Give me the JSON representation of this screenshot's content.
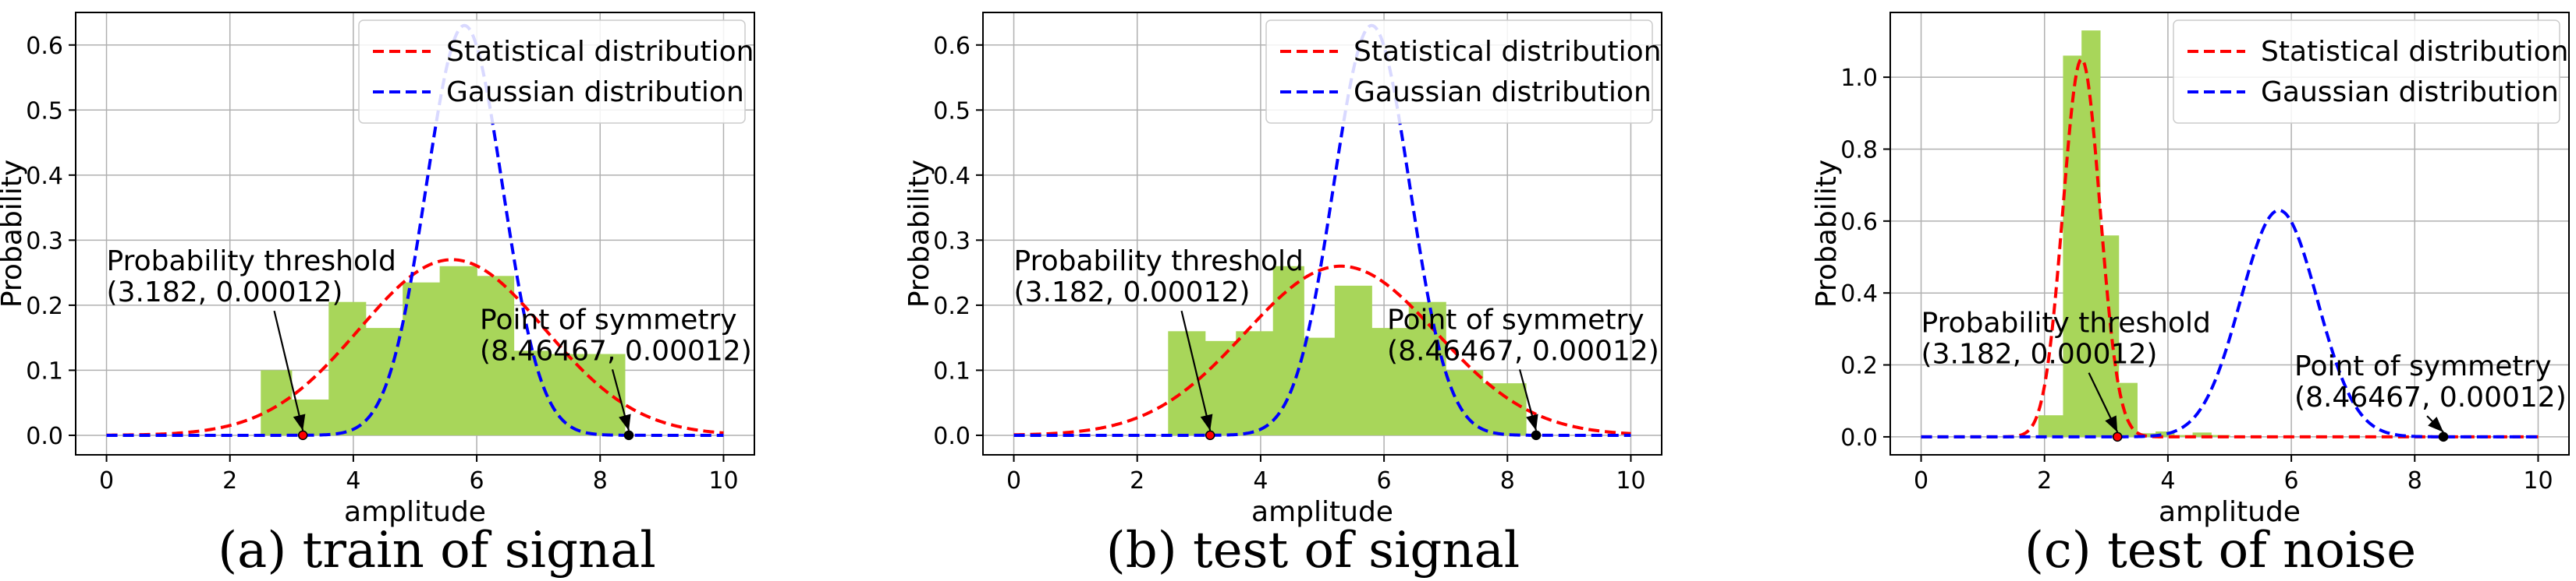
{
  "chart_data": [
    {
      "type": "bar",
      "caption": "(a)  train of signal",
      "xlabel": "amplitude",
      "ylabel": "Probability",
      "xlim": [
        -0.5,
        10.5
      ],
      "ylim": [
        -0.03,
        0.65
      ],
      "xticks": [
        "0",
        "2",
        "4",
        "6",
        "8",
        "10"
      ],
      "yticks": [
        "0.0",
        "0.1",
        "0.2",
        "0.3",
        "0.4",
        "0.5",
        "0.6"
      ],
      "grid": true,
      "legend_position": "top-right",
      "histogram": {
        "color": "#a8d65a",
        "bin_edges": [
          2.5,
          3.0,
          3.6,
          4.2,
          4.8,
          5.4,
          6.0,
          6.6,
          7.2,
          7.8,
          8.4
        ],
        "values": [
          0.1,
          0.055,
          0.205,
          0.165,
          0.235,
          0.26,
          0.245,
          0.13,
          0.125,
          0.125
        ]
      },
      "series": [
        {
          "name": "Statistical distribution",
          "color": "#ff0000",
          "style": "dashed",
          "mean": 5.6,
          "std": 1.5,
          "peak": 0.27
        },
        {
          "name": "Gaussian distribution",
          "color": "#0000ff",
          "style": "dashed",
          "mean": 5.8,
          "std": 0.62,
          "peak": 0.63
        }
      ],
      "annotations": [
        {
          "line1": "Probability threshold",
          "line2": "(3.182, 0.00012)",
          "x": 3.182,
          "y": 0.00012,
          "text_x": 0.0,
          "text_y": 0.22
        },
        {
          "line1": "Point of symmetry",
          "line2": "(8.46467, 0.00012)",
          "x": 8.46467,
          "y": 0.00012,
          "text_x": 6.05,
          "text_y": 0.13
        }
      ]
    },
    {
      "type": "bar",
      "caption": "(b)  test of signal",
      "xlabel": "amplitude",
      "ylabel": "Probability",
      "xlim": [
        -0.5,
        10.5
      ],
      "ylim": [
        -0.03,
        0.65
      ],
      "xticks": [
        "0",
        "2",
        "4",
        "6",
        "8",
        "10"
      ],
      "yticks": [
        "0.0",
        "0.1",
        "0.2",
        "0.3",
        "0.4",
        "0.5",
        "0.6"
      ],
      "grid": true,
      "legend_position": "top-right",
      "histogram": {
        "color": "#a8d65a",
        "bin_edges": [
          2.5,
          3.1,
          3.6,
          4.2,
          4.7,
          5.2,
          5.8,
          6.4,
          7.0,
          7.6,
          8.3
        ],
        "values": [
          0.16,
          0.145,
          0.16,
          0.26,
          0.15,
          0.23,
          0.165,
          0.205,
          0.1,
          0.08
        ]
      },
      "series": [
        {
          "name": "Statistical distribution",
          "color": "#ff0000",
          "style": "dashed",
          "mean": 5.3,
          "std": 1.55,
          "peak": 0.26
        },
        {
          "name": "Gaussian distribution",
          "color": "#0000ff",
          "style": "dashed",
          "mean": 5.8,
          "std": 0.62,
          "peak": 0.63
        }
      ],
      "annotations": [
        {
          "line1": "Probability threshold",
          "line2": "(3.182, 0.00012)",
          "x": 3.182,
          "y": 0.00012,
          "text_x": 0.0,
          "text_y": 0.22
        },
        {
          "line1": "Point of symmetry",
          "line2": "(8.46467, 0.00012)",
          "x": 8.46467,
          "y": 0.00012,
          "text_x": 6.05,
          "text_y": 0.13
        }
      ]
    },
    {
      "type": "bar",
      "caption": "(c)  test of noise",
      "xlabel": "amplitude",
      "ylabel": "Probability",
      "xlim": [
        -0.5,
        10.5
      ],
      "ylim": [
        -0.05,
        1.18
      ],
      "xticks": [
        "0",
        "2",
        "4",
        "6",
        "8",
        "10"
      ],
      "yticks": [
        "0.0",
        "0.2",
        "0.4",
        "0.6",
        "0.8",
        "1.0"
      ],
      "grid": true,
      "legend_position": "top-right",
      "histogram": {
        "color": "#a8d65a",
        "bin_edges": [
          1.9,
          2.3,
          2.6,
          2.9,
          3.2,
          3.5,
          3.8,
          4.1,
          4.4,
          4.7,
          5.0
        ],
        "values": [
          0.06,
          1.06,
          1.13,
          0.56,
          0.15,
          0.01,
          0.015,
          0.005,
          0.012,
          0.005
        ]
      },
      "series": [
        {
          "name": "Statistical distribution",
          "color": "#ff0000",
          "style": "dashed",
          "mean": 2.6,
          "std": 0.3,
          "peak": 1.05
        },
        {
          "name": "Gaussian distribution",
          "color": "#0000ff",
          "style": "dashed",
          "mean": 5.8,
          "std": 0.62,
          "peak": 0.63
        }
      ],
      "annotations": [
        {
          "line1": "Probability threshold",
          "line2": "(3.182, 0.00012)",
          "x": 3.182,
          "y": 0.00012,
          "text_x": 0.0,
          "text_y": 0.23
        },
        {
          "line1": "Point of symmetry",
          "line2": "(8.46467, 0.00012)",
          "x": 8.46467,
          "y": 0.00012,
          "text_x": 6.05,
          "text_y": 0.11
        }
      ]
    }
  ]
}
